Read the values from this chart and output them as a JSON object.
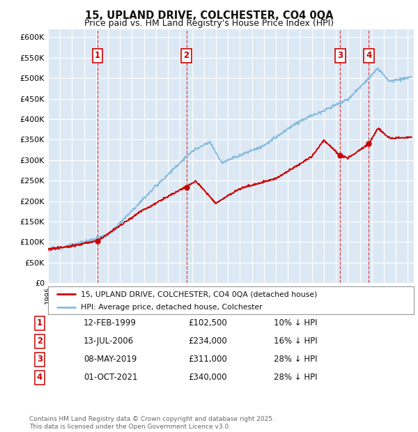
{
  "title": "15, UPLAND DRIVE, COLCHESTER, CO4 0QA",
  "subtitle": "Price paid vs. HM Land Registry's House Price Index (HPI)",
  "ylim": [
    0,
    620000
  ],
  "yticks": [
    0,
    50000,
    100000,
    150000,
    200000,
    250000,
    300000,
    350000,
    400000,
    450000,
    500000,
    550000,
    600000
  ],
  "background_color": "#dce9f5",
  "grid_color": "#ffffff",
  "red_line_color": "#cc0000",
  "blue_line_color": "#88bbdd",
  "sale_points": [
    {
      "label": "1",
      "date_str": "12-FEB-1999",
      "price": 102500,
      "x": 1999.12
    },
    {
      "label": "2",
      "date_str": "13-JUL-2006",
      "price": 234000,
      "x": 2006.54
    },
    {
      "label": "3",
      "date_str": "08-MAY-2019",
      "price": 311000,
      "x": 2019.36
    },
    {
      "label": "4",
      "date_str": "01-OCT-2021",
      "price": 340000,
      "x": 2021.75
    }
  ],
  "table_rows": [
    {
      "num": "1",
      "date": "12-FEB-1999",
      "price": "£102,500",
      "hpi": "10% ↓ HPI"
    },
    {
      "num": "2",
      "date": "13-JUL-2006",
      "price": "£234,000",
      "hpi": "16% ↓ HPI"
    },
    {
      "num": "3",
      "date": "08-MAY-2019",
      "price": "£311,000",
      "hpi": "28% ↓ HPI"
    },
    {
      "num": "4",
      "date": "01-OCT-2021",
      "price": "£340,000",
      "hpi": "28% ↓ HPI"
    }
  ],
  "legend_label_red": "15, UPLAND DRIVE, COLCHESTER, CO4 0QA (detached house)",
  "legend_label_blue": "HPI: Average price, detached house, Colchester",
  "footer": "Contains HM Land Registry data © Crown copyright and database right 2025.\nThis data is licensed under the Open Government Licence v3.0.",
  "xmin": 1995,
  "xmax": 2025.5
}
